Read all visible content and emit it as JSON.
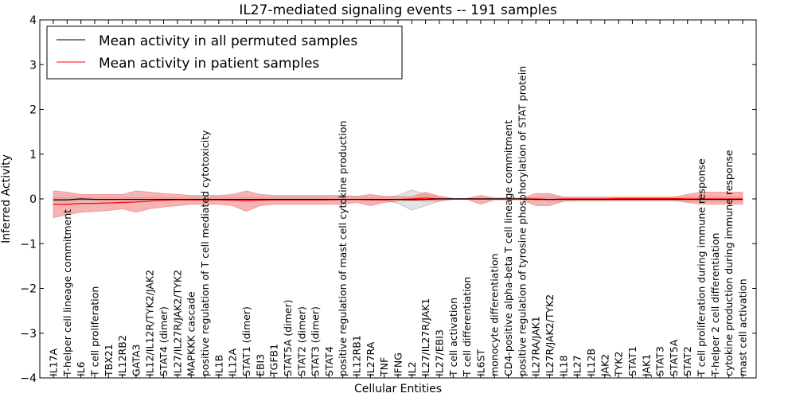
{
  "chart_data": {
    "type": "line",
    "title": "IL27-mediated signaling events -- 191 samples",
    "xlabel": "Cellular Entities",
    "ylabel": "Inferred Activity",
    "ylim": [
      -4,
      4
    ],
    "yticks": [
      -4,
      -3,
      -2,
      -1,
      0,
      1,
      2,
      3,
      4
    ],
    "ytick_labels": [
      "−4",
      "−3",
      "−2",
      "−1",
      "0",
      "1",
      "2",
      "3",
      "4"
    ],
    "legend": {
      "placement": "top-left",
      "entries": [
        {
          "label": "Mean activity in all permuted samples",
          "color": "#000000"
        },
        {
          "label": "Mean activity in patient samples",
          "color": "#ff0000"
        }
      ]
    },
    "categories": [
      "IL17A",
      "T-helper cell lineage commitment",
      "IL6",
      "T cell proliferation",
      "TBX21",
      "IL12RB2",
      "GATA3",
      "IL12/IL12R/TYK2/JAK2",
      "STAT4 (dimer)",
      "IL27/IL27R/JAK2/TYK2",
      "MAPKKK cascade",
      "positive regulation of T cell mediated cytotoxicity",
      "IL1B",
      "IL12A",
      "STAT1 (dimer)",
      "EBI3",
      "TGFB1",
      "STAT5A (dimer)",
      "STAT2 (dimer)",
      "STAT3 (dimer)",
      "STAT4",
      "positive regulation of mast cell cytokine production",
      "IL12RB1",
      "IL27RA",
      "TNF",
      "IFNG",
      "IL2",
      "IL27/IL27R/JAK1",
      "IL27/EBI3",
      "T cell activation",
      "T cell differentiation",
      "IL6ST",
      "monocyte differentiation",
      "CD4-positive alpha-beta T cell lineage commitment",
      "positive regulation of tyrosine phosphorylation of STAT protein",
      "IL27RA/JAK1",
      "IL27R/JAK2/TYK2",
      "IL18",
      "IL27",
      "IL12B",
      "JAK2",
      "TYK2",
      "STAT1",
      "JAK1",
      "STAT3",
      "STAT5A",
      "STAT2",
      "T cell proliferation during immune response",
      "T-helper 2 cell differentiation",
      "cytokine production during immune response",
      "mast cell activation"
    ],
    "series": [
      {
        "name": "Mean activity in all permuted samples",
        "color": "#000000",
        "values": [
          -0.02,
          -0.02,
          0.0,
          -0.01,
          -0.01,
          -0.01,
          -0.01,
          -0.01,
          -0.01,
          -0.01,
          -0.01,
          -0.01,
          -0.01,
          -0.01,
          -0.01,
          -0.01,
          -0.01,
          -0.01,
          -0.01,
          -0.01,
          -0.01,
          -0.01,
          -0.01,
          -0.01,
          -0.01,
          -0.01,
          -0.02,
          -0.01,
          0.0,
          0.0,
          0.0,
          0.0,
          0.0,
          0.0,
          0.0,
          -0.01,
          -0.01,
          -0.01,
          -0.01,
          -0.01,
          -0.01,
          -0.01,
          -0.01,
          -0.01,
          -0.01,
          -0.01,
          -0.01,
          -0.01,
          -0.01,
          -0.01,
          -0.01
        ],
        "lower": [
          -0.05,
          -0.05,
          -0.03,
          -0.04,
          -0.04,
          -0.04,
          -0.04,
          -0.04,
          -0.03,
          -0.03,
          -0.03,
          -0.03,
          -0.03,
          -0.03,
          -0.03,
          -0.03,
          -0.03,
          -0.03,
          -0.03,
          -0.03,
          -0.03,
          -0.03,
          -0.03,
          -0.03,
          -0.03,
          -0.1,
          -0.25,
          -0.15,
          -0.05,
          -0.01,
          -0.01,
          -0.01,
          -0.02,
          -0.02,
          -0.02,
          -0.03,
          -0.05,
          -0.05,
          -0.05,
          -0.05,
          -0.05,
          -0.05,
          -0.05,
          -0.05,
          -0.05,
          -0.05,
          -0.05,
          -0.05,
          -0.05,
          -0.05,
          -0.05
        ],
        "upper": [
          0.03,
          0.03,
          0.03,
          0.03,
          0.03,
          0.03,
          0.03,
          0.03,
          0.03,
          0.03,
          0.03,
          0.03,
          0.03,
          0.03,
          0.03,
          0.03,
          0.03,
          0.03,
          0.03,
          0.03,
          0.03,
          0.03,
          0.03,
          0.03,
          0.03,
          0.08,
          0.2,
          0.1,
          0.04,
          0.01,
          0.01,
          0.01,
          0.02,
          0.02,
          0.02,
          0.03,
          0.04,
          0.04,
          0.04,
          0.04,
          0.04,
          0.04,
          0.04,
          0.04,
          0.04,
          0.04,
          0.04,
          0.04,
          0.04,
          0.04,
          0.04
        ]
      },
      {
        "name": "Mean activity in patient samples",
        "color": "#ff0000",
        "values": [
          -0.12,
          -0.12,
          -0.1,
          -0.1,
          -0.09,
          -0.08,
          -0.07,
          -0.05,
          -0.03,
          -0.02,
          -0.02,
          -0.02,
          -0.02,
          -0.03,
          -0.04,
          -0.03,
          -0.02,
          -0.02,
          -0.02,
          -0.02,
          -0.02,
          -0.01,
          -0.01,
          -0.02,
          -0.02,
          -0.01,
          0.0,
          0.02,
          0.0,
          0.0,
          0.0,
          0.0,
          0.0,
          0.0,
          0.0,
          0.0,
          -0.01,
          0.0,
          0.0,
          0.0,
          0.0,
          0.01,
          0.01,
          0.01,
          0.01,
          0.01,
          0.0,
          0.0,
          0.0,
          0.0,
          0.0
        ],
        "lower": [
          -0.42,
          -0.35,
          -0.3,
          -0.28,
          -0.26,
          -0.22,
          -0.3,
          -0.22,
          -0.18,
          -0.15,
          -0.12,
          -0.12,
          -0.12,
          -0.15,
          -0.28,
          -0.15,
          -0.12,
          -0.12,
          -0.12,
          -0.12,
          -0.12,
          -0.12,
          -0.08,
          -0.15,
          -0.08,
          -0.05,
          -0.03,
          -0.05,
          -0.05,
          -0.01,
          -0.01,
          -0.12,
          -0.02,
          -0.02,
          -0.02,
          -0.15,
          -0.15,
          -0.05,
          -0.03,
          -0.03,
          -0.03,
          -0.03,
          -0.03,
          -0.03,
          -0.03,
          -0.03,
          -0.08,
          -0.12,
          -0.12,
          -0.12,
          -0.12
        ],
        "upper": [
          0.18,
          0.15,
          0.1,
          0.1,
          0.1,
          0.1,
          0.18,
          0.15,
          0.12,
          0.1,
          0.08,
          0.08,
          0.08,
          0.1,
          0.18,
          0.1,
          0.08,
          0.08,
          0.08,
          0.08,
          0.08,
          0.08,
          0.06,
          0.1,
          0.06,
          0.05,
          0.05,
          0.15,
          0.06,
          0.01,
          0.01,
          0.08,
          0.02,
          0.02,
          0.02,
          0.12,
          0.12,
          0.04,
          0.04,
          0.04,
          0.04,
          0.04,
          0.04,
          0.04,
          0.04,
          0.04,
          0.1,
          0.15,
          0.15,
          0.15,
          0.15
        ]
      }
    ]
  }
}
